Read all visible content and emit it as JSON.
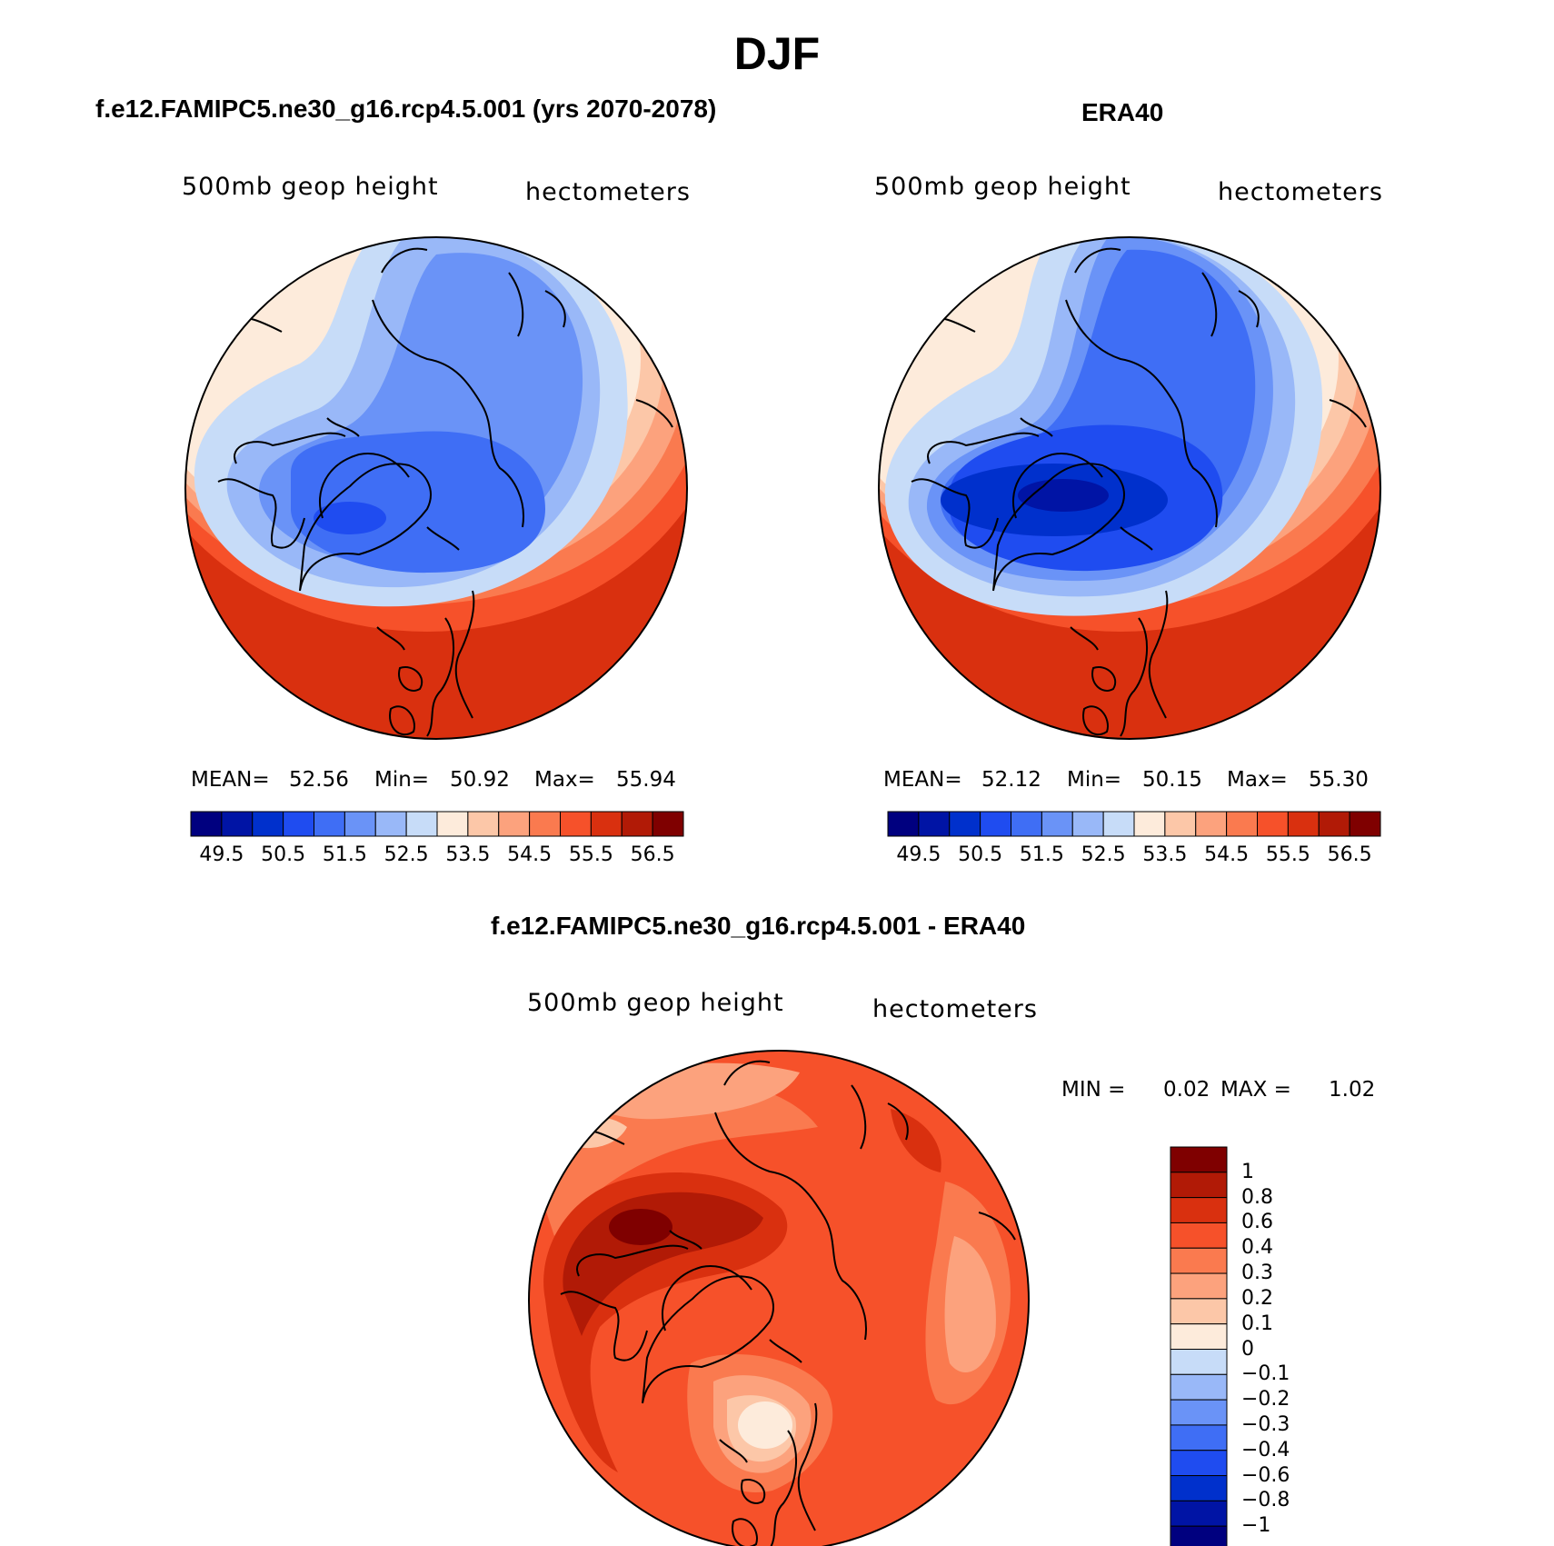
{
  "figure": {
    "title": "DJF",
    "colors": {
      "blue_red_16": [
        "#00007f",
        "#0014a5",
        "#0030cc",
        "#1f4cf0",
        "#3f6ef5",
        "#6a93f7",
        "#99b8f8",
        "#c7dcf8",
        "#fdebdb",
        "#fcc7a8",
        "#fca27d",
        "#fa7a4f",
        "#f6512a",
        "#d9300f",
        "#b11a06",
        "#7f0000"
      ],
      "diff_ramp_16": [
        "#00007f",
        "#0014a5",
        "#0030cc",
        "#1f4cf0",
        "#3f6ef5",
        "#6a93f7",
        "#99b8f8",
        "#c7dcf8",
        "#fdebdb",
        "#fcc7a8",
        "#fca27d",
        "#fa7a4f",
        "#f6512a",
        "#d9300f",
        "#b11a06",
        "#7f0000"
      ],
      "coastline": "#000000"
    }
  },
  "panels": [
    {
      "title": "f.e12.FAMIPC5.ne30_g16.rcp4.5.001 (yrs 2070-2078)",
      "variable": "500mb geop height",
      "units": "hectometers",
      "stats": {
        "mean_label": "MEAN=",
        "mean": "52.56",
        "min_label": "Min=",
        "min": "50.92",
        "max_label": "Max=",
        "max": "55.94"
      },
      "colorbar_labels": [
        "49.5",
        "50.5",
        "51.5",
        "52.5",
        "53.5",
        "54.5",
        "55.5",
        "56.5"
      ]
    },
    {
      "title": "ERA40",
      "variable": "500mb geop height",
      "units": "hectometers",
      "stats": {
        "mean_label": "MEAN=",
        "mean": "52.12",
        "min_label": "Min=",
        "min": "50.15",
        "max_label": "Max=",
        "max": "55.30"
      },
      "colorbar_labels": [
        "49.5",
        "50.5",
        "51.5",
        "52.5",
        "53.5",
        "54.5",
        "55.5",
        "56.5"
      ]
    },
    {
      "title": "f.e12.FAMIPC5.ne30_g16.rcp4.5.001 - ERA40",
      "variable": "500mb geop height",
      "units": "hectometers",
      "stats": {
        "min_label": "MIN =",
        "min": "0.02",
        "max_label": "MAX =",
        "max": "1.02"
      },
      "colorbar_labels": [
        "1",
        "0.8",
        "0.6",
        "0.4",
        "0.3",
        "0.2",
        "0.1",
        "0",
        "−0.1",
        "−0.2",
        "−0.3",
        "−0.4",
        "−0.6",
        "−0.8",
        "−1"
      ]
    }
  ]
}
